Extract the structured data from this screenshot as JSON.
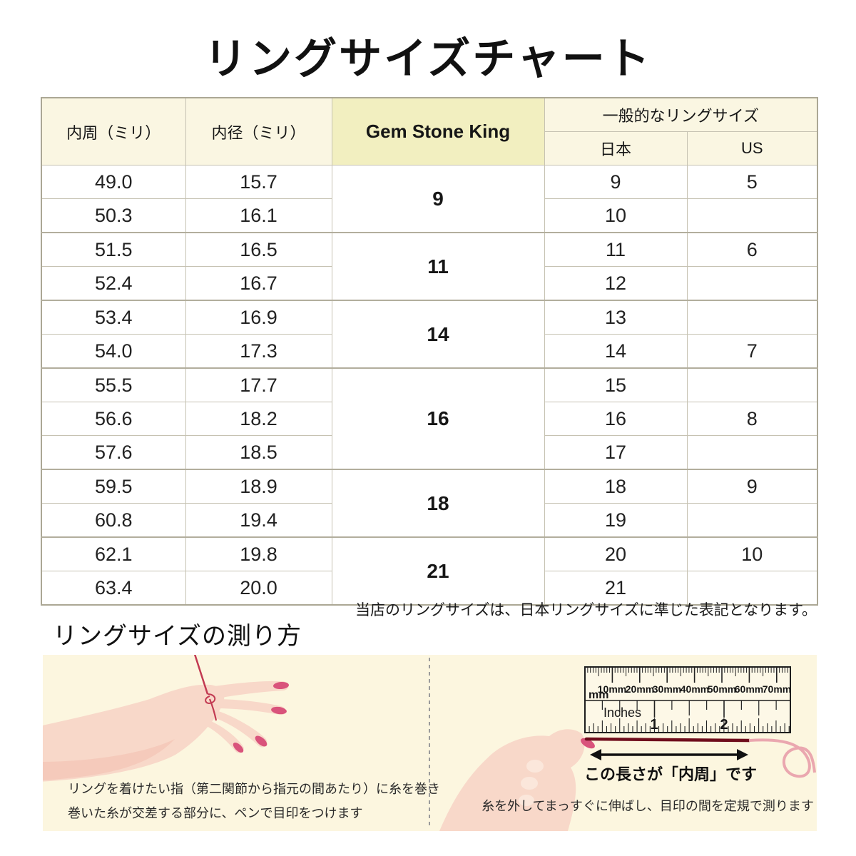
{
  "title": "リングサイズチャート",
  "chart_data": {
    "type": "table",
    "title": "リングサイズチャート",
    "column_group_label": "一般的なリングサイズ",
    "columns": [
      "内周（ミリ）",
      "内径（ミリ）",
      "Gem Stone King",
      "日本",
      "US"
    ],
    "brand_groups": [
      {
        "label": "9",
        "rowspan": 2
      },
      {
        "label": "11",
        "rowspan": 2
      },
      {
        "label": "14",
        "rowspan": 2
      },
      {
        "label": "16",
        "rowspan": 3
      },
      {
        "label": "18",
        "rowspan": 2
      },
      {
        "label": "21",
        "rowspan": 2
      }
    ],
    "rows": [
      [
        "49.0",
        "15.7",
        "9",
        "5"
      ],
      [
        "50.3",
        "16.1",
        "10",
        ""
      ],
      [
        "51.5",
        "16.5",
        "11",
        "6"
      ],
      [
        "52.4",
        "16.7",
        "12",
        ""
      ],
      [
        "53.4",
        "16.9",
        "13",
        ""
      ],
      [
        "54.0",
        "17.3",
        "14",
        "7"
      ],
      [
        "55.5",
        "17.7",
        "15",
        ""
      ],
      [
        "56.6",
        "18.2",
        "16",
        "8"
      ],
      [
        "57.6",
        "18.5",
        "17",
        ""
      ],
      [
        "59.5",
        "18.9",
        "18",
        "9"
      ],
      [
        "60.8",
        "19.4",
        "19",
        ""
      ],
      [
        "62.1",
        "19.8",
        "20",
        "10"
      ],
      [
        "63.4",
        "20.0",
        "21",
        ""
      ]
    ]
  },
  "note": "当店のリングサイズは、日本リングサイズに準じた表記となります。",
  "measure_section": {
    "title": "リングサイズの測り方",
    "left_caption_line1": "リングを着けたい指（第二関節から指元の間あたり）に糸を巻き",
    "left_caption_line2": "巻いた糸が交差する部分に、ペンで目印をつけます",
    "arrow_label": "この長さが「内周」です",
    "right_caption": "糸を外してまっすぐに伸ばし、目印の間を定規で測ります",
    "ruler": {
      "unit_label": "mm",
      "inches_label": "Inches",
      "mm_labels": [
        "10mm",
        "20mm",
        "30mm",
        "40mm",
        "50mm",
        "60mm",
        "70mm"
      ],
      "inch_numbers": [
        "1",
        "2"
      ]
    }
  },
  "colors": {
    "brand_header_bg": "#f2efc0",
    "header_bg": "#faf6e2",
    "panel_bg": "#fcf6df",
    "table_border": "#c6c2b2",
    "thread_red": "#c23a52",
    "thread_dark_red": "#6f0d1c",
    "thread_pink": "#eaa7af",
    "skin": "#f8d8c9",
    "nail": "#d9537b"
  }
}
